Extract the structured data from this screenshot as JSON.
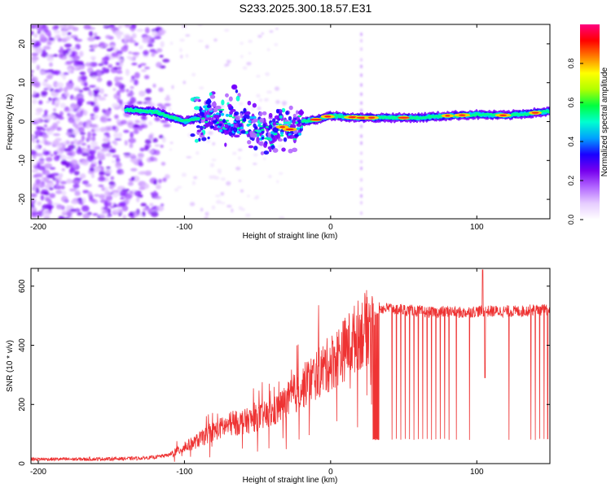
{
  "title": "S233.2025.300.18.57.E31",
  "chart_data": [
    {
      "type": "heatmap",
      "name": "spectrogram",
      "xlabel": "Height of straight line (km)",
      "ylabel": "Frequency (Hz)",
      "xlim": [
        -205,
        150
      ],
      "ylim": [
        -25,
        25
      ],
      "xticks": [
        -200,
        -100,
        0,
        100
      ],
      "xtick_labels": [
        "-200",
        "-100",
        "0",
        "100"
      ],
      "yticks": [
        -20,
        -10,
        0,
        10,
        20
      ],
      "ytick_labels": [
        "-20",
        "-10",
        "0",
        "10",
        "20"
      ],
      "colorbar": {
        "label": "Normalized spectral amplitude",
        "range": [
          0,
          1
        ],
        "ticks": [
          0.0,
          0.2,
          0.4,
          0.6,
          0.8
        ],
        "tick_labels": [
          "0.0",
          "0.2",
          "0.4",
          "0.6",
          "0.8"
        ],
        "colors": [
          "#ffffff",
          "#e6ccff",
          "#b266ff",
          "#7700ee",
          "#1a00ff",
          "#00a0ff",
          "#00ffd0",
          "#00ff40",
          "#b0ff00",
          "#ffff00",
          "#ff8000",
          "#ff0000",
          "#ff0080"
        ]
      },
      "ridge": {
        "description": "dominant frequency track vs height",
        "x": [
          -140,
          -120,
          -100,
          -80,
          -70,
          -60,
          -50,
          -40,
          -35,
          -30,
          -25,
          -20,
          -10,
          0,
          20,
          40,
          60,
          80,
          100,
          120,
          150
        ],
        "y": [
          3,
          2.5,
          0,
          2,
          -1,
          0,
          -2,
          -3,
          -1,
          -2,
          -2,
          0,
          0.5,
          1.5,
          1.0,
          1.0,
          1.0,
          1.5,
          1.8,
          1.6,
          2.6
        ]
      }
    },
    {
      "type": "line",
      "name": "snr",
      "xlabel": "Height of straight line (km)",
      "ylabel": "SNR (10 * v/v)",
      "xlim": [
        -205,
        150
      ],
      "ylim": [
        0,
        660
      ],
      "xticks": [
        -200,
        -100,
        0,
        100
      ],
      "xtick_labels": [
        "-200",
        "-100",
        "0",
        "100"
      ],
      "yticks": [
        0,
        200,
        400,
        600
      ],
      "ytick_labels": [
        "0",
        "200",
        "400",
        "600"
      ],
      "series": [
        {
          "name": "SNR",
          "color": "#ee3333",
          "x": [
            -205,
            -190,
            -170,
            -150,
            -130,
            -120,
            -110,
            -100,
            -90,
            -80,
            -70,
            -60,
            -50,
            -40,
            -30,
            -20,
            -10,
            0,
            10,
            20,
            28,
            32,
            40,
            50,
            60,
            70,
            80,
            90,
            100,
            110,
            120,
            130,
            140,
            150
          ],
          "y": [
            15,
            15,
            15,
            16,
            18,
            22,
            30,
            55,
            80,
            110,
            130,
            140,
            155,
            170,
            210,
            255,
            300,
            340,
            390,
            440,
            470,
            525,
            525,
            520,
            515,
            510,
            515,
            510,
            515,
            515,
            515,
            515,
            520,
            520
          ]
        }
      ],
      "dropouts": {
        "description": "sharp drops to ~80 observed in the SNR trace",
        "x": [
          29,
          29.5,
          30,
          30.5,
          31,
          31.5,
          32,
          32.5,
          33,
          42,
          45,
          48,
          51,
          54,
          57,
          60,
          63,
          66,
          69,
          72,
          75,
          78,
          81,
          86,
          95,
          122,
          137,
          140,
          143,
          146,
          148.5
        ],
        "y": 80
      }
    }
  ]
}
